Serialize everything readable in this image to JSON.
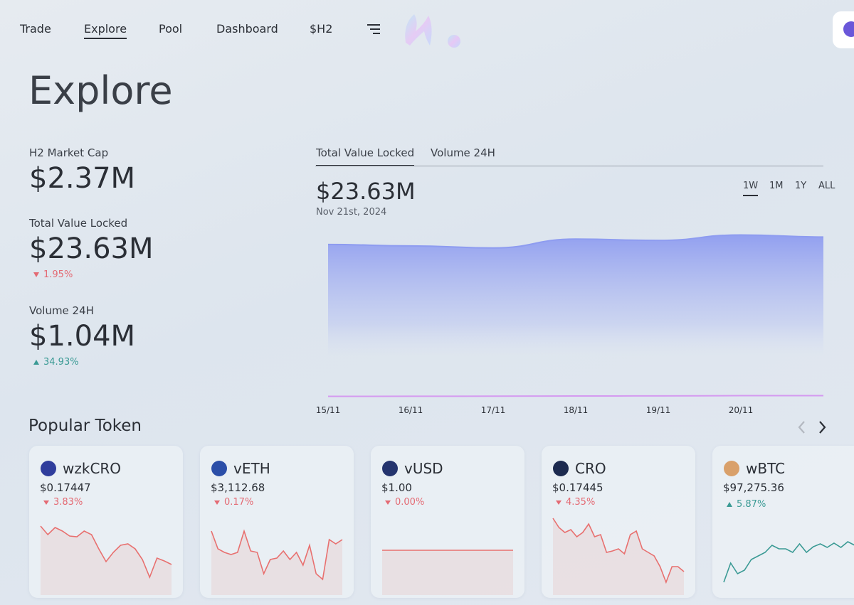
{
  "nav": {
    "items": [
      "Trade",
      "Explore",
      "Pool",
      "Dashboard",
      "$H2"
    ],
    "active": 1
  },
  "page_title": "Explore",
  "stats": [
    {
      "label": "H2 Market Cap",
      "value": "$2.37M"
    },
    {
      "label": "Total Value Locked",
      "value": "$23.63M",
      "change": "1.95%",
      "direction": "down"
    },
    {
      "label": "Volume 24H",
      "value": "$1.04M",
      "change": "34.93%",
      "direction": "up"
    }
  ],
  "panel": {
    "tabs": [
      "Total Value Locked",
      "Volume 24H"
    ],
    "active_tab": 0,
    "value": "$23.63M",
    "date": "Nov 21st, 2024",
    "ranges": [
      "1W",
      "1M",
      "1Y",
      "ALL"
    ],
    "active_range": 0
  },
  "chart_data": {
    "type": "area",
    "x": [
      "15/11",
      "16/11",
      "17/11",
      "18/11",
      "19/11",
      "20/11",
      null
    ],
    "series": [
      {
        "color": "#8e9cf0",
        "values": [
          22.3,
          22.1,
          21.8,
          23.1,
          22.9,
          23.7,
          23.4
        ]
      },
      {
        "color": "#d59af0",
        "values": [
          0.05,
          0.06,
          0.08,
          0.1,
          0.12,
          0.15,
          0.15
        ]
      }
    ],
    "ylim": [
      0,
      30
    ]
  },
  "popular": {
    "title": "Popular Token",
    "tokens": [
      {
        "name": "wzkCRO",
        "price": "$0.17447",
        "change": "3.83%",
        "direction": "down",
        "color": "#2f3d9c",
        "spark": {
          "ylim": [
            0,
            100
          ],
          "values": [
            87,
            75,
            85,
            80,
            73,
            72,
            80,
            75,
            55,
            37,
            50,
            60,
            62,
            55,
            40,
            15,
            42,
            38,
            33
          ]
        }
      },
      {
        "name": "vETH",
        "price": "$3,112.68",
        "change": "0.17%",
        "direction": "down",
        "color": "#2b4ea8",
        "spark": {
          "ylim": [
            0,
            100
          ],
          "values": [
            80,
            55,
            50,
            47,
            50,
            80,
            52,
            50,
            20,
            40,
            42,
            52,
            40,
            50,
            32,
            60,
            20,
            12,
            68,
            62,
            68
          ]
        }
      },
      {
        "name": "vUSD",
        "price": "$1.00",
        "change": "0.00%",
        "direction": "down",
        "color": "#24346e",
        "spark": {
          "ylim": [
            0,
            100
          ],
          "values": [
            53,
            53,
            53,
            53,
            53,
            53,
            53,
            53,
            53,
            53,
            53,
            53,
            53,
            53,
            53,
            53,
            53,
            53,
            53,
            53
          ]
        }
      },
      {
        "name": "CRO",
        "price": "$0.17445",
        "change": "4.35%",
        "direction": "down",
        "color": "#1c2a4f",
        "spark": {
          "ylim": [
            0,
            100
          ],
          "values": [
            98,
            85,
            78,
            82,
            72,
            78,
            90,
            72,
            75,
            50,
            52,
            55,
            48,
            75,
            80,
            55,
            50,
            45,
            30,
            8,
            30,
            30,
            23
          ]
        }
      },
      {
        "name": "wBTC",
        "price": "$97,275.36",
        "change": "5.87%",
        "direction": "up",
        "color": "#d9a06a",
        "spark": {
          "ylim": [
            0,
            100
          ],
          "values": [
            8,
            35,
            20,
            25,
            40,
            45,
            50,
            60,
            55,
            55,
            50,
            62,
            50,
            58,
            62,
            57,
            63,
            57,
            65,
            60
          ]
        }
      }
    ]
  }
}
